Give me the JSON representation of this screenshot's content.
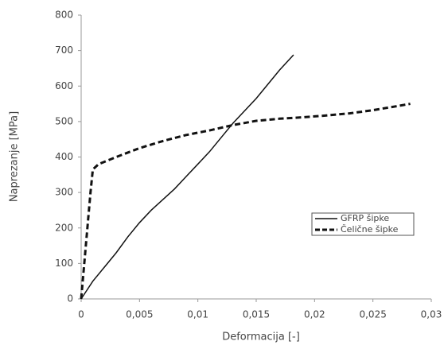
{
  "chart_data": {
    "type": "line",
    "xlabel": "Deformacija [-]",
    "ylabel": "Naprezanje [MPa]",
    "xlim": [
      0,
      0.03
    ],
    "ylim": [
      0,
      800
    ],
    "xticks": [
      0,
      {
        "value": 0.005,
        "label": "0,005"
      },
      {
        "value": 0.01,
        "label": "0,01"
      },
      {
        "value": 0.015,
        "label": "0,015"
      },
      {
        "value": 0.02,
        "label": "0,02"
      },
      {
        "value": 0.025,
        "label": "0,025"
      },
      {
        "value": 0.03,
        "label": "0,03"
      }
    ],
    "yticks": [
      0,
      100,
      200,
      300,
      400,
      500,
      600,
      700,
      800
    ],
    "grid": false,
    "legend": "lower right",
    "series": [
      {
        "name": "GFRP šipke",
        "color": "#111111",
        "linestyle": "solid",
        "x": [
          0,
          0.001,
          0.002,
          0.003,
          0.004,
          0.005,
          0.006,
          0.007,
          0.008,
          0.009,
          0.01,
          0.011,
          0.012,
          0.013,
          0.014,
          0.015,
          0.016,
          0.017,
          0.0182
        ],
        "values": [
          0,
          50,
          90,
          130,
          175,
          215,
          250,
          280,
          310,
          345,
          380,
          415,
          455,
          495,
          530,
          565,
          605,
          645,
          688
        ]
      },
      {
        "name": "Čelične šipke",
        "color": "#111111",
        "linestyle": "dashed",
        "x": [
          0,
          0.0008,
          0.001,
          0.0015,
          0.003,
          0.005,
          0.007,
          0.009,
          0.011,
          0.013,
          0.015,
          0.017,
          0.019,
          0.021,
          0.023,
          0.025,
          0.027,
          0.0282
        ],
        "values": [
          0,
          300,
          365,
          380,
          400,
          425,
          445,
          462,
          475,
          490,
          502,
          508,
          512,
          517,
          523,
          532,
          543,
          550
        ]
      }
    ]
  }
}
